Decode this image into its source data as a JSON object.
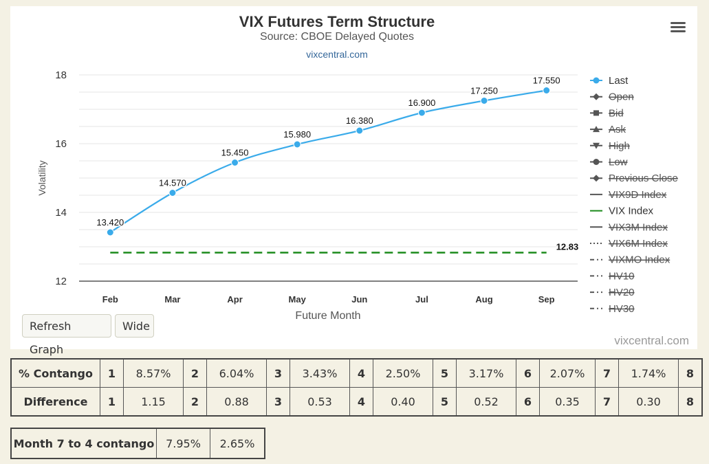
{
  "chart_data": {
    "type": "line",
    "title": "VIX Futures Term Structure",
    "subtitle": "Source: CBOE Delayed Quotes",
    "source_link": "vixcentral.com",
    "credit": "vixcentral.com",
    "xlabel": "Future Month",
    "ylabel": "Volatility",
    "ylim": [
      12,
      18
    ],
    "yticks": [
      12,
      14,
      16,
      18
    ],
    "categories": [
      "Feb",
      "Mar",
      "Apr",
      "May",
      "Jun",
      "Jul",
      "Aug",
      "Sep"
    ],
    "series": [
      {
        "name": "Last",
        "values": [
          13.42,
          14.57,
          15.45,
          15.98,
          16.38,
          16.9,
          17.25,
          17.55
        ],
        "labels": [
          "13.420",
          "14.570",
          "15.450",
          "15.980",
          "16.380",
          "16.900",
          "17.250",
          "17.550"
        ],
        "color": "#3aabea"
      },
      {
        "name": "VIX Index",
        "value": 12.83,
        "label": "12.83",
        "color": "#1a8a1a",
        "style": "dashed"
      }
    ],
    "grid": true,
    "legend_position": "right",
    "legend": [
      {
        "name": "Last",
        "symbol": "circle",
        "color": "#3aabea",
        "hidden": false
      },
      {
        "name": "Open",
        "symbol": "diamond",
        "color": "#555555",
        "hidden": true
      },
      {
        "name": "Bid",
        "symbol": "square",
        "color": "#555555",
        "hidden": true
      },
      {
        "name": "Ask",
        "symbol": "triangle",
        "color": "#555555",
        "hidden": true
      },
      {
        "name": "High",
        "symbol": "triangle-down",
        "color": "#555555",
        "hidden": true
      },
      {
        "name": "Low",
        "symbol": "circle",
        "color": "#555555",
        "hidden": true
      },
      {
        "name": "Previous Close",
        "symbol": "diamond",
        "color": "#555555",
        "hidden": true
      },
      {
        "name": "VIX9D Index",
        "symbol": "line",
        "color": "#555555",
        "hidden": true
      },
      {
        "name": "VIX Index",
        "symbol": "line",
        "color": "#1a8a1a",
        "hidden": false
      },
      {
        "name": "VIX3M Index",
        "symbol": "line",
        "color": "#555555",
        "hidden": true
      },
      {
        "name": "VIX6M Index",
        "symbol": "dotted",
        "color": "#555555",
        "hidden": true
      },
      {
        "name": "VIXMO Index",
        "symbol": "dashdot",
        "color": "#555555",
        "hidden": true
      },
      {
        "name": "HV10",
        "symbol": "dashdot",
        "color": "#555555",
        "hidden": true
      },
      {
        "name": "HV20",
        "symbol": "dashdot",
        "color": "#555555",
        "hidden": true
      },
      {
        "name": "HV30",
        "symbol": "dashdot",
        "color": "#555555",
        "hidden": true
      }
    ]
  },
  "controls": {
    "refresh_label": "Refresh Graph",
    "wide_label": "Wide",
    "menu_icon": "hamburger-menu-icon"
  },
  "contango_table": {
    "rows": [
      {
        "label": "% Contango",
        "cells": [
          [
            "1",
            "8.57%"
          ],
          [
            "2",
            "6.04%"
          ],
          [
            "3",
            "3.43%"
          ],
          [
            "4",
            "2.50%"
          ],
          [
            "5",
            "3.17%"
          ],
          [
            "6",
            "2.07%"
          ],
          [
            "7",
            "1.74%"
          ],
          [
            "8",
            ""
          ]
        ]
      },
      {
        "label": "Difference",
        "cells": [
          [
            "1",
            "1.15"
          ],
          [
            "2",
            "0.88"
          ],
          [
            "3",
            "0.53"
          ],
          [
            "4",
            "0.40"
          ],
          [
            "5",
            "0.52"
          ],
          [
            "6",
            "0.35"
          ],
          [
            "7",
            "0.30"
          ],
          [
            "8",
            ""
          ]
        ]
      }
    ]
  },
  "month_7_4": {
    "label": "Month 7 to 4 contango",
    "values": [
      "7.95%",
      "2.65%"
    ]
  }
}
